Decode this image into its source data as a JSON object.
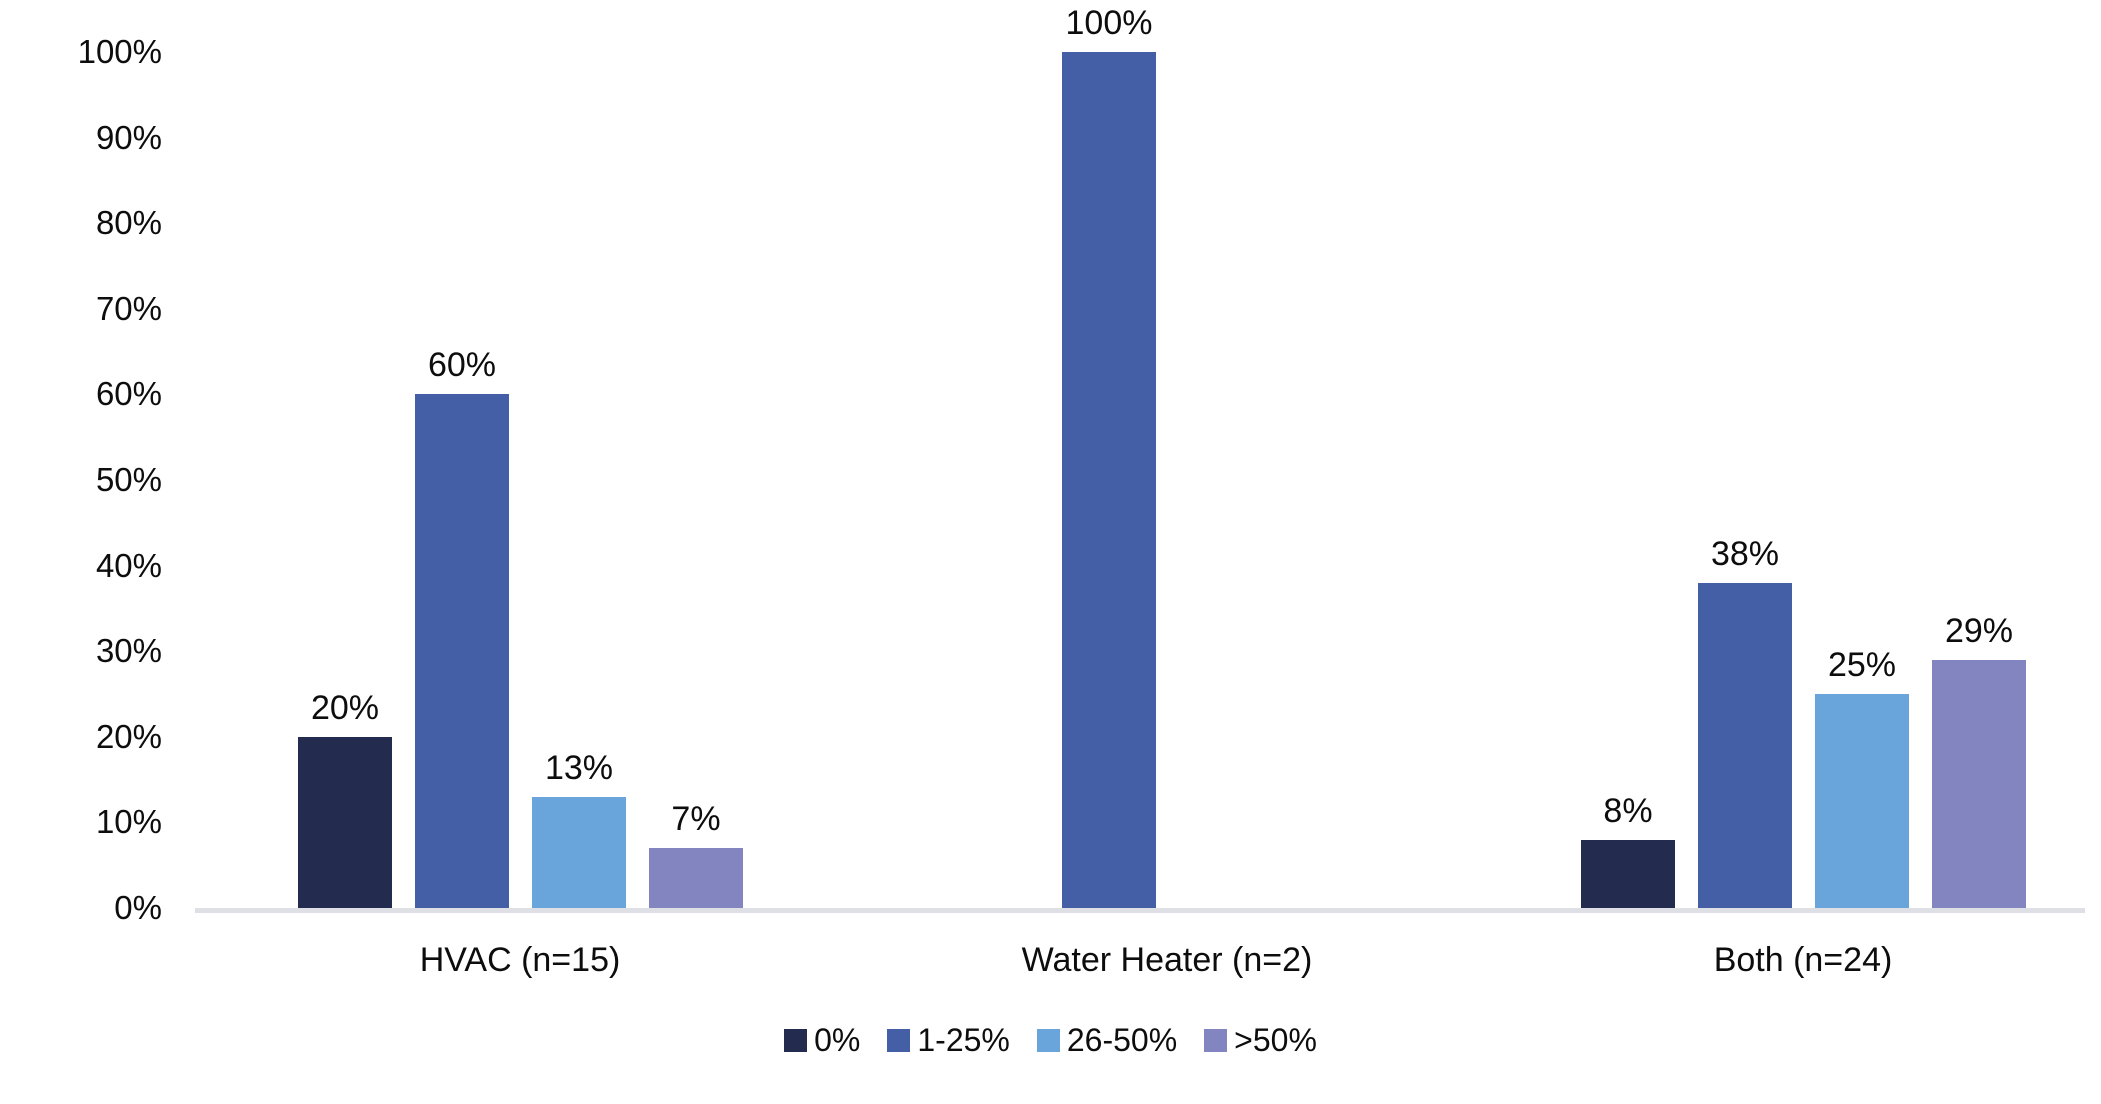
{
  "window": {
    "background": "#ffffff",
    "text_color": "#0d0d0d"
  },
  "chart_data": {
    "type": "bar",
    "title": "",
    "orientation": "vertical-grouped",
    "categories": [
      "HVAC (n=15)",
      "Water Heater (n=2)",
      "Both (n=24)"
    ],
    "series": [
      {
        "name": "0%",
        "color": "#232c4e",
        "values": [
          20,
          null,
          8
        ],
        "labels": [
          "20%",
          null,
          "8%"
        ]
      },
      {
        "name": "1-25%",
        "color": "#455fa6",
        "values": [
          60,
          100,
          38
        ],
        "labels": [
          "60%",
          "100%",
          "38%"
        ]
      },
      {
        "name": "26-50%",
        "color": "#69a5db",
        "values": [
          13,
          null,
          25
        ],
        "labels": [
          "13%",
          null,
          "25%"
        ]
      },
      {
        "name": ">50%",
        "color": "#8285c0",
        "values": [
          7,
          null,
          29
        ],
        "labels": [
          "7%",
          null,
          "29%"
        ]
      }
    ],
    "y_axis": {
      "min": 0,
      "max": 100,
      "tick_step": 10,
      "tick_labels": [
        "0%",
        "10%",
        "20%",
        "30%",
        "40%",
        "50%",
        "60%",
        "70%",
        "80%",
        "90%",
        "100%"
      ],
      "gridlines": false
    },
    "x_axis": {
      "line_color": "#dee0e6"
    },
    "legend": {
      "position": "bottom-center",
      "items": [
        "0%",
        "1-25%",
        "26-50%",
        ">50%"
      ]
    },
    "data_labels_visible": true
  }
}
